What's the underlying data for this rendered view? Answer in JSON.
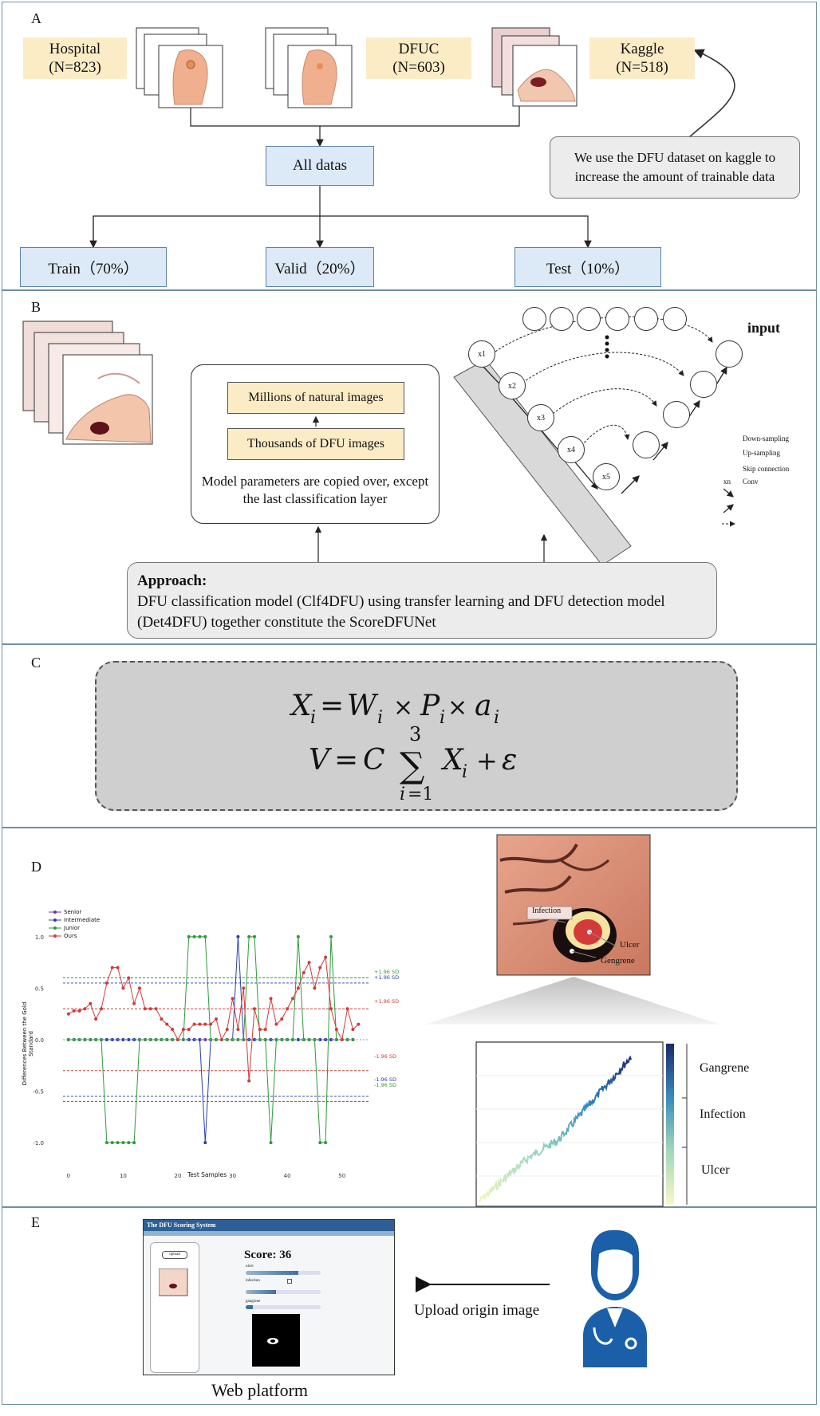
{
  "panels": {
    "a": "A",
    "b": "B",
    "c": "C",
    "d": "D",
    "e": "E"
  },
  "panel_a": {
    "sources": [
      {
        "name": "Hospital",
        "count": "(N=823)"
      },
      {
        "name": "DFUC",
        "count": "(N=603)"
      },
      {
        "name": "Kaggle",
        "count": "(N=518)"
      }
    ],
    "note": "We use the DFU dataset on kaggle to increase the amount of trainable data",
    "all_data": "All datas",
    "splits": [
      "Train（70%）",
      "Valid（20%）",
      "Test（10%）"
    ]
  },
  "panel_b": {
    "natural": "Millions of natural images",
    "dfu": "Thousands of DFU images",
    "copy_note": "Model parameters are copied over, except the last classification layer",
    "input_label": "input",
    "nodes": [
      "x1",
      "x2",
      "x3",
      "x4",
      "x5"
    ],
    "legend": [
      "Down-sampling",
      "Up-sampling",
      "Skip connection",
      "Conv"
    ],
    "legend_key_conv": "xn",
    "approach_title": "Approach:",
    "approach_text": "DFU classification model (Clf4DFU) using transfer learning and DFU detection model (Det4DFU) together constitute the ScoreDFUNet"
  },
  "panel_d": {
    "legend": [
      "Senior",
      "Intermediate",
      "Junior",
      "Ours"
    ],
    "xlabel": "Test Samples",
    "ylabel": "Differences Between the Gold Standard",
    "sd_labels": [
      "+1.96 SD",
      "+1.96 SD",
      "+1.96 SD",
      "-1.96 SD",
      "-1.96 SD",
      "-1.96 SD"
    ],
    "wound_labels": {
      "infection": "Infection",
      "ulcer": "Ulcer",
      "gangrene": "Gengrene"
    },
    "colorbar_labels": [
      "Gangrene",
      "Infection",
      "Ulcer"
    ]
  },
  "panel_e": {
    "app_title": "The DFU Scoring System",
    "upload_btn": "upload",
    "score": "Score: 36",
    "field_labels": [
      "ulcer",
      "infection",
      "gangrene"
    ],
    "upload_text": "Upload origin image",
    "platform": "Web platform"
  },
  "chart_data": {
    "type": "line",
    "xlabel": "Test Samples",
    "ylabel": "Differences Between the Gold Standard",
    "xlim": [
      -1,
      55
    ],
    "ylim": [
      -1.2,
      1.2
    ],
    "xticks": [
      0,
      10,
      20,
      30,
      40,
      50
    ],
    "yticks": [
      -1.0,
      -0.5,
      0.0,
      0.5,
      1.0
    ],
    "legend_position": "top-left",
    "series": [
      {
        "name": "Senior",
        "color": "#7030a0",
        "values": [
          0,
          0,
          0,
          0,
          0,
          0,
          0,
          0,
          0,
          0,
          0,
          0,
          0,
          0,
          0,
          0,
          0,
          0,
          0,
          0,
          0,
          0,
          0,
          0,
          0,
          0,
          0,
          0,
          0,
          0,
          0,
          0,
          0,
          0,
          0,
          0,
          0,
          0,
          0,
          0,
          0,
          0,
          0,
          0,
          0,
          0,
          0,
          0,
          0,
          0,
          0,
          0,
          0
        ]
      },
      {
        "name": "Intermediate",
        "color": "#2b3fb0",
        "values": [
          0,
          0,
          0,
          0,
          0,
          0,
          0,
          0,
          0,
          0,
          0,
          0,
          0,
          0,
          0,
          0,
          0,
          0,
          0,
          0,
          0,
          0,
          0,
          0,
          0,
          -1,
          0,
          0,
          0,
          0,
          0,
          1,
          0,
          0,
          0,
          0,
          0,
          0,
          0,
          0,
          0,
          0,
          0,
          0,
          0,
          0,
          0,
          0,
          0,
          0,
          0,
          0,
          0
        ]
      },
      {
        "name": "Junior",
        "color": "#2e9a3a",
        "values": [
          0,
          0,
          0,
          0,
          0,
          0,
          0,
          -1,
          -1,
          -1,
          -1,
          -1,
          -1,
          0,
          0,
          0,
          0,
          0,
          0,
          0,
          0,
          0,
          1,
          1,
          1,
          1,
          0,
          0,
          0,
          0,
          0,
          0,
          0,
          1,
          1,
          0,
          0,
          -1,
          0,
          0,
          0,
          0,
          1,
          0,
          0,
          0,
          -1,
          -1,
          1,
          0,
          0,
          0,
          0
        ]
      },
      {
        "name": "Ours",
        "color": "#d03a3a",
        "values": [
          0.25,
          0.28,
          0.28,
          0.3,
          0.35,
          0.2,
          0.3,
          0.55,
          0.7,
          0.7,
          0.5,
          0.6,
          0.35,
          0.5,
          0.3,
          0.3,
          0.3,
          0.2,
          0.15,
          0.1,
          0.0,
          0.1,
          0.1,
          0.15,
          0.15,
          0.15,
          0.15,
          0.2,
          0.0,
          0.1,
          0.4,
          0.1,
          0.5,
          -0.4,
          0.3,
          0.1,
          0.1,
          0.4,
          0.15,
          0.2,
          0.3,
          0.4,
          0.5,
          0.65,
          0.75,
          0.5,
          0.7,
          0.8,
          0.3,
          0.1,
          0.0,
          0.3,
          0.1,
          0.15
        ]
      }
    ],
    "reference_lines": [
      {
        "label": "+1.96 SD",
        "y": 0.6,
        "color": "#2e9a3a"
      },
      {
        "label": "+1.96 SD",
        "y": 0.55,
        "color": "#2b3fb0"
      },
      {
        "label": "+1.96 SD",
        "y": 0.3,
        "color": "#d03a3a"
      },
      {
        "label": "-1.96 SD",
        "y": -0.3,
        "color": "#d03a3a"
      },
      {
        "label": "-1.96 SD",
        "y": -0.55,
        "color": "#2b3fb0"
      },
      {
        "label": "-1.96 SD",
        "y": -0.6,
        "color": "#2e9a3a"
      }
    ]
  }
}
